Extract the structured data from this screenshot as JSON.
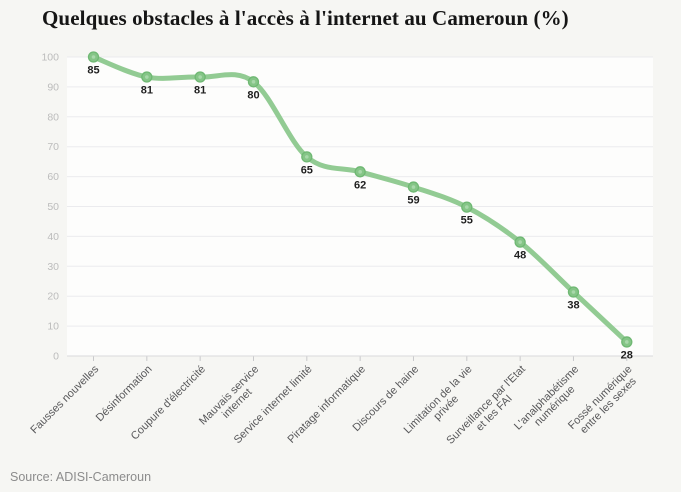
{
  "chart_data": {
    "type": "line",
    "title": "Quelques obstacles à l'accès à l'internet au Cameroun (%)",
    "categories": [
      "Fausses nouvelles",
      "Désinformation",
      "Coupure d'électricité",
      "Mauvais service\ninternet",
      "Service internet limité",
      "Piratage informatique",
      "Discours de haine",
      "Limitation de la vie\nprivée",
      "Surveillance par l'Etat\net les FAI",
      "L'analphabétisme\nnumérique",
      "Fossé numérique\nentre les sexes"
    ],
    "values": [
      85,
      81,
      81,
      80,
      65,
      62,
      59,
      55,
      48,
      38,
      28
    ],
    "plotted_values": [
      100,
      93.3,
      93.3,
      91.7,
      66.6,
      61.6,
      56.5,
      49.8,
      38.1,
      21.4,
      4.7
    ],
    "xlabel": "",
    "ylabel": "",
    "ylim": [
      0,
      100
    ],
    "ytick_step": 10,
    "grid": true,
    "legend": "none",
    "marker_labels_visible": true
  },
  "footer": {
    "source": "Source: ADISI-Cameroun"
  },
  "colors": {
    "page_bg": "#f6f6f3",
    "plot_bg": "#fdfdfc",
    "grid": "#ebebee",
    "axis": "#d9d9db",
    "tick": "#c9c9cb",
    "line": "#92cb93",
    "marker_fill": "#85c587",
    "marker_stroke": "#6fb873",
    "marker_core": "#a8d8aa",
    "value_label": "#1f1f1f",
    "ytick_text": "#bcbcbc",
    "xtick_text": "#58585a",
    "title_text": "#151515",
    "source_text": "#8c8c8c"
  }
}
